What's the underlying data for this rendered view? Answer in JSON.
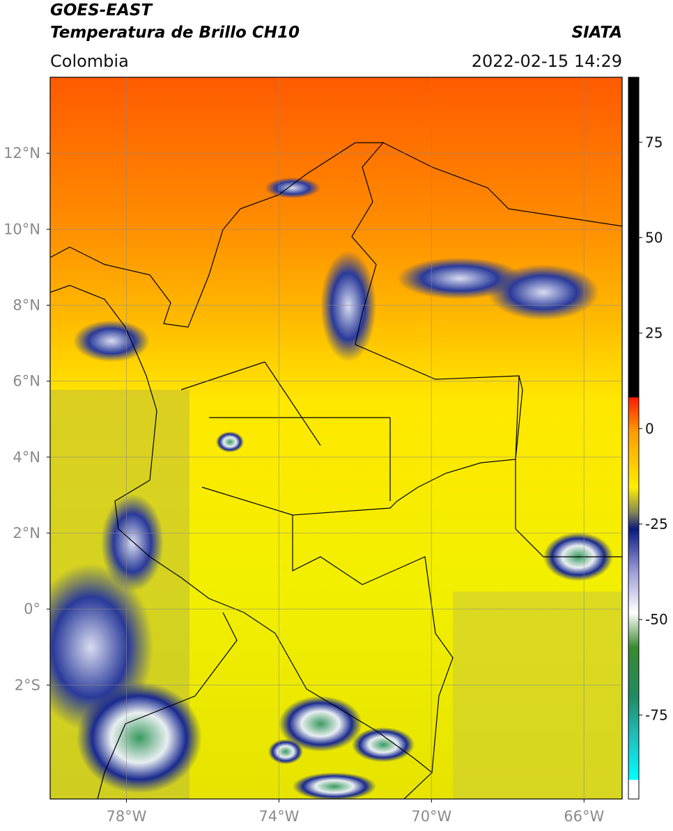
{
  "header": {
    "title": "GOES-EAST",
    "subtitle": "Temperatura de Brillo CH10",
    "source": "SIATA",
    "region": "Colombia",
    "datetime": "2022-02-15 14:29"
  },
  "map": {
    "xlim": [
      -80,
      -65
    ],
    "ylim": [
      -5,
      14
    ],
    "grid": true,
    "xticks": [
      {
        "value": -78,
        "label": "78°W"
      },
      {
        "value": -74,
        "label": "74°W"
      },
      {
        "value": -70,
        "label": "70°W"
      },
      {
        "value": -66,
        "label": "66°W"
      }
    ],
    "yticks": [
      {
        "value": 12,
        "label": "12°N"
      },
      {
        "value": 10,
        "label": "10°N"
      },
      {
        "value": 8,
        "label": "8°N"
      },
      {
        "value": 6,
        "label": "6°N"
      },
      {
        "value": 4,
        "label": "4°N"
      },
      {
        "value": 2,
        "label": "2°N"
      },
      {
        "value": 0,
        "label": "0°"
      },
      {
        "value": -2,
        "label": "2°S"
      }
    ]
  },
  "colorbar": {
    "range": [
      -97,
      92
    ],
    "ticks": [
      75,
      50,
      25,
      0,
      -25,
      -50,
      -75
    ]
  }
}
